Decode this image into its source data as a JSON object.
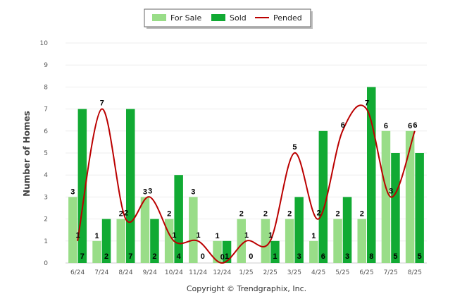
{
  "chart_data": {
    "type": "bar",
    "categories": [
      "6/24",
      "7/24",
      "8/24",
      "9/24",
      "10/24",
      "11/24",
      "12/24",
      "1/25",
      "2/25",
      "3/25",
      "4/25",
      "5/25",
      "6/25",
      "7/25",
      "8/25"
    ],
    "series": [
      {
        "name": "For Sale",
        "type": "bar",
        "color": "#99dd88",
        "values": [
          3,
          1,
          2,
          3,
          2,
          3,
          1,
          2,
          2,
          2,
          1,
          2,
          2,
          6,
          6
        ]
      },
      {
        "name": "Sold",
        "type": "bar",
        "color": "#11aa33",
        "values": [
          7,
          2,
          7,
          2,
          4,
          0,
          1,
          0,
          1,
          3,
          6,
          3,
          8,
          5,
          5
        ]
      },
      {
        "name": "Pended",
        "type": "line",
        "color": "#bb0000",
        "values": [
          1,
          7,
          2,
          3,
          1,
          1,
          0,
          1,
          1,
          5,
          2,
          6,
          7,
          3,
          6
        ]
      }
    ],
    "ylabel": "Number of Homes",
    "ylim": [
      0,
      10
    ],
    "yticks": [
      "0",
      "1",
      "2",
      "3",
      "4",
      "5",
      "6",
      "7",
      "8",
      "9",
      "10"
    ],
    "grid": true,
    "legend": "top-center"
  },
  "footer": {
    "copyright": "Copyright © Trendgraphix, Inc."
  }
}
